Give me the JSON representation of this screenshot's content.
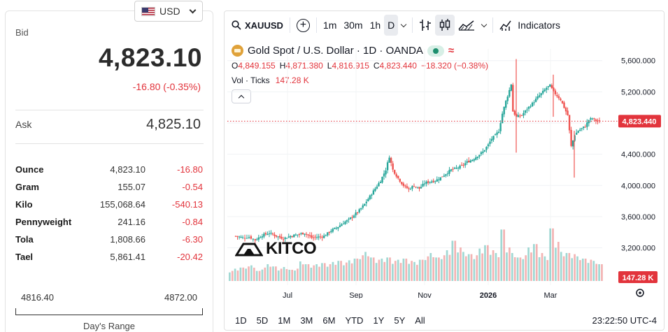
{
  "currency": {
    "label": "USD",
    "flag_icon": "us-flag-icon"
  },
  "quote": {
    "bid_label": "Bid",
    "bid_value": "4,823.10",
    "bid_change": "-16.80 (-0.35%)",
    "ask_label": "Ask",
    "ask_value": "4,825.10"
  },
  "units": [
    {
      "name": "Ounce",
      "price": "4,823.10",
      "change": "-16.80"
    },
    {
      "name": "Gram",
      "price": "155.07",
      "change": "-0.54"
    },
    {
      "name": "Kilo",
      "price": "155,068.64",
      "change": "-540.13"
    },
    {
      "name": "Pennyweight",
      "price": "241.16",
      "change": "-0.84"
    },
    {
      "name": "Tola",
      "price": "1,808.66",
      "change": "-6.30"
    },
    {
      "name": "Tael",
      "price": "5,861.41",
      "change": "-20.42"
    }
  ],
  "days_range": {
    "low": "4816.40",
    "high": "4872.00",
    "label": "Day's Range"
  },
  "toolbar": {
    "symbol": "XAUUSD",
    "intervals": [
      "1m",
      "30m",
      "1h",
      "D"
    ],
    "active_interval": "D",
    "indicators_label": "Indicators"
  },
  "legend": {
    "title": "Gold Spot / U.S. Dollar · 1D · OANDA",
    "open_key": "O",
    "open": "4,849.155",
    "high_key": "H",
    "high": "4,871.380",
    "low_key": "L",
    "low": "4,816.915",
    "close_key": "C",
    "close": "4,823.440",
    "change": "−18.320 (−0.38%)",
    "vol_label": "Vol · Ticks",
    "vol_value": "147.28 K"
  },
  "ranges": [
    "1D",
    "5D",
    "1M",
    "3M",
    "6M",
    "YTD",
    "1Y",
    "5Y",
    "All"
  ],
  "clock": "23:22:50 UTC-4",
  "watermark": "KITCO",
  "colors": {
    "up": "#26a69a",
    "down": "#ef5350",
    "price_tag": "#e2343c",
    "accent_red": "#e2343c"
  },
  "chart_data": {
    "type": "candlestick",
    "y_ticks": [
      "5,600.000",
      "5,200.000",
      "4,800.000",
      "4,400.000",
      "4,000.000",
      "3,600.000",
      "3,200.000"
    ],
    "y_tick_values": [
      5600,
      5200,
      4800,
      4400,
      4000,
      3600,
      3200
    ],
    "ylim": [
      2900,
      5750
    ],
    "x_ticks": [
      "Jul",
      "Sep",
      "Nov",
      "2026",
      "Mar"
    ],
    "last_price": 4823.44,
    "last_price_label": "4,823.440",
    "volume_label": "147.28 K",
    "price_path": [
      [
        0,
        3350
      ],
      [
        8,
        3330
      ],
      [
        15,
        3340
      ],
      [
        22,
        3300
      ],
      [
        30,
        3360
      ],
      [
        38,
        3390
      ],
      [
        46,
        3350
      ],
      [
        54,
        3320
      ],
      [
        62,
        3350
      ],
      [
        70,
        3370
      ],
      [
        78,
        3390
      ],
      [
        86,
        3330
      ],
      [
        94,
        3340
      ],
      [
        100,
        3350
      ],
      [
        108,
        3420
      ],
      [
        116,
        3470
      ],
      [
        122,
        3520
      ],
      [
        128,
        3560
      ],
      [
        134,
        3620
      ],
      [
        140,
        3680
      ],
      [
        146,
        3760
      ],
      [
        152,
        3860
      ],
      [
        158,
        3960
      ],
      [
        164,
        4060
      ],
      [
        170,
        4200
      ],
      [
        174,
        4370
      ],
      [
        178,
        4200
      ],
      [
        184,
        4090
      ],
      [
        190,
        4000
      ],
      [
        196,
        3950
      ],
      [
        202,
        4000
      ],
      [
        208,
        3960
      ],
      [
        214,
        4030
      ],
      [
        220,
        4050
      ],
      [
        226,
        4060
      ],
      [
        232,
        4100
      ],
      [
        238,
        4150
      ],
      [
        244,
        4200
      ],
      [
        250,
        4220
      ],
      [
        256,
        4250
      ],
      [
        262,
        4300
      ],
      [
        268,
        4330
      ],
      [
        274,
        4380
      ],
      [
        280,
        4430
      ],
      [
        286,
        4520
      ],
      [
        290,
        4600
      ],
      [
        294,
        4640
      ],
      [
        298,
        4700
      ],
      [
        302,
        4920
      ],
      [
        306,
        5080
      ],
      [
        310,
        5220
      ],
      [
        312,
        5300
      ],
      [
        314,
        4950
      ],
      [
        318,
        4880
      ],
      [
        324,
        4900
      ],
      [
        330,
        4980
      ],
      [
        336,
        5050
      ],
      [
        342,
        5130
      ],
      [
        348,
        5200
      ],
      [
        352,
        5250
      ],
      [
        356,
        5280
      ],
      [
        360,
        5200
      ],
      [
        364,
        5150
      ],
      [
        368,
        5100
      ],
      [
        372,
        5000
      ],
      [
        376,
        4900
      ],
      [
        380,
        4500
      ],
      [
        384,
        4650
      ],
      [
        388,
        4700
      ],
      [
        392,
        4730
      ],
      [
        396,
        4760
      ],
      [
        400,
        4840
      ],
      [
        404,
        4860
      ],
      [
        408,
        4830
      ],
      [
        412,
        4823
      ]
    ],
    "volume_levels": [
      0.18,
      0.22,
      0.24,
      0.26,
      0.28,
      0.18,
      0.24,
      0.3,
      0.26,
      0.22,
      0.25,
      0.2,
      0.22,
      0.35,
      0.3,
      0.28,
      0.3,
      0.32,
      0.3,
      0.34,
      0.36,
      0.33,
      0.37,
      0.4,
      0.46,
      0.52,
      0.42,
      0.38,
      0.4,
      0.42,
      0.36,
      0.38,
      0.4,
      0.36,
      0.34,
      0.38,
      0.44,
      0.5,
      0.42,
      0.46,
      0.55,
      0.72,
      0.6,
      0.52,
      0.48,
      0.46,
      0.58,
      0.64,
      0.55,
      0.5,
      0.92,
      0.6,
      0.5,
      0.42,
      0.46,
      0.6,
      0.66,
      0.5,
      0.44,
      0.94,
      0.7,
      0.52,
      0.5,
      0.48,
      0.44,
      0.4,
      0.38,
      0.36,
      0.3
    ]
  }
}
